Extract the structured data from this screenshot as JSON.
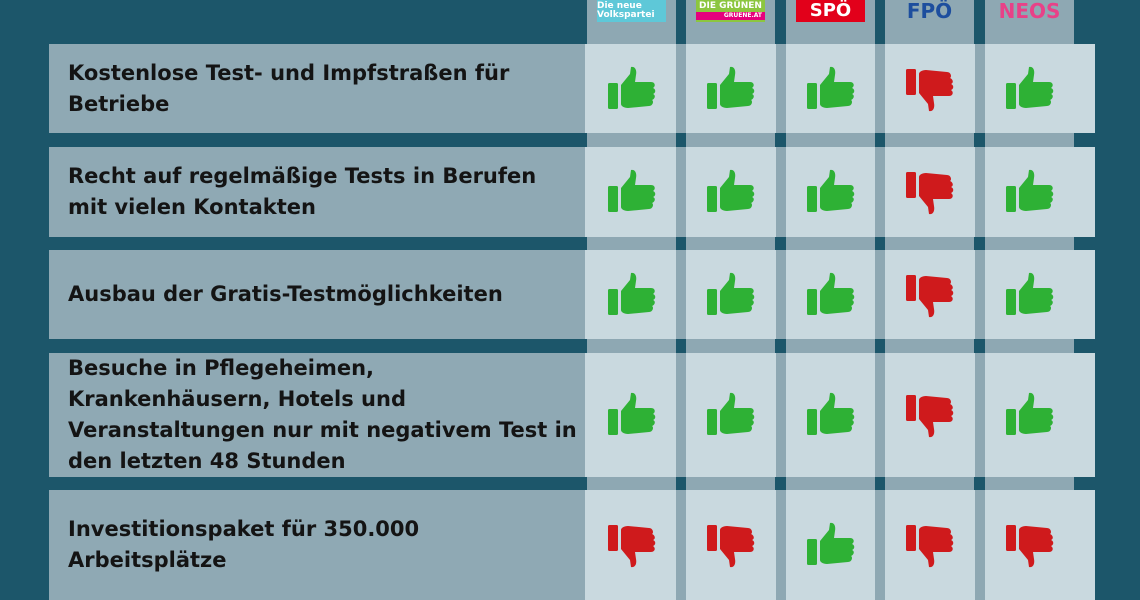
{
  "parties": [
    {
      "name": "Die neue Volkspartei",
      "color": "#5ec8d8"
    },
    {
      "name": "DIE GRÜNEN",
      "sub": "GRUENE.AT",
      "color": "#8cc63f"
    },
    {
      "name": "SPÖ",
      "color": "#e2001a"
    },
    {
      "name": "FPÖ",
      "color": "#1d4e9e"
    },
    {
      "name": "NEOS",
      "color": "#e84188"
    }
  ],
  "colors": {
    "yes": "#2eb135",
    "no": "#cf1a1c"
  },
  "rows": [
    {
      "label": "Kostenlose Test- und Impfstraßen für Betriebe",
      "votes": [
        "yes",
        "yes",
        "yes",
        "no",
        "yes"
      ]
    },
    {
      "label": "Recht auf regelmäßige Tests in Berufen mit vielen Kontakten",
      "votes": [
        "yes",
        "yes",
        "yes",
        "no",
        "yes"
      ]
    },
    {
      "label": "Ausbau der Gratis-Testmöglichkeiten",
      "votes": [
        "yes",
        "yes",
        "yes",
        "no",
        "yes"
      ]
    },
    {
      "label": "Besuche in Pflegeheimen, Krankenhäusern, Hotels und Veranstaltungen nur mit negativem Test in den letzten 48 Stunden",
      "votes": [
        "yes",
        "yes",
        "yes",
        "no",
        "yes"
      ]
    },
    {
      "label": "Investitionspaket für 350.000 Arbeitsplätze",
      "votes": [
        "no",
        "no",
        "yes",
        "no",
        "no"
      ]
    }
  ]
}
